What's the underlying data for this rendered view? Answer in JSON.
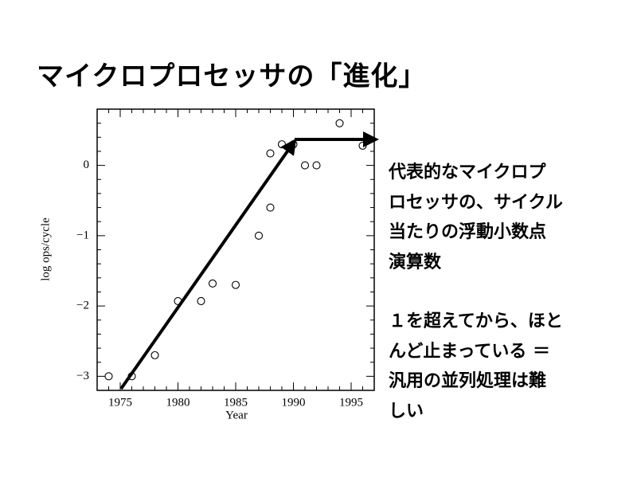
{
  "header": {
    "title": "マイクロプロセッサの「進化」"
  },
  "notes": {
    "paragraphs": [
      [
        "代表的なマイクロプ",
        "ロセッサの、サイクル",
        "当たりの浮動小数点",
        "演算数"
      ],
      [
        "１を超えてから、ほと",
        "んど止まっている ＝",
        "汎用の並列処理は難",
        "しい"
      ]
    ]
  },
  "chart_data": {
    "type": "scatter",
    "x_label": "Year",
    "y_label": "log ops/cycle",
    "x": [
      1974,
      1976,
      1978,
      1980,
      1982,
      1983,
      1985,
      1987,
      1988,
      1988,
      1989,
      1990,
      1991,
      1992,
      1994,
      1996
    ],
    "values": [
      -3,
      -3,
      -2.7,
      -1.93,
      -1.93,
      -1.68,
      -1.7,
      -1.0,
      -0.6,
      0.17,
      0.3,
      0.3,
      0,
      0,
      0.6,
      0.28
    ],
    "xlim": [
      1973,
      1997
    ],
    "ylim": [
      -3.2,
      0.8
    ],
    "xticks": [
      1975,
      1980,
      1985,
      1990,
      1995
    ],
    "yticks": [
      {
        "value": -3,
        "label": "−3"
      },
      {
        "value": -2,
        "label": "−2"
      },
      {
        "value": -1,
        "label": "−1"
      },
      0
    ],
    "color": "#000000"
  }
}
